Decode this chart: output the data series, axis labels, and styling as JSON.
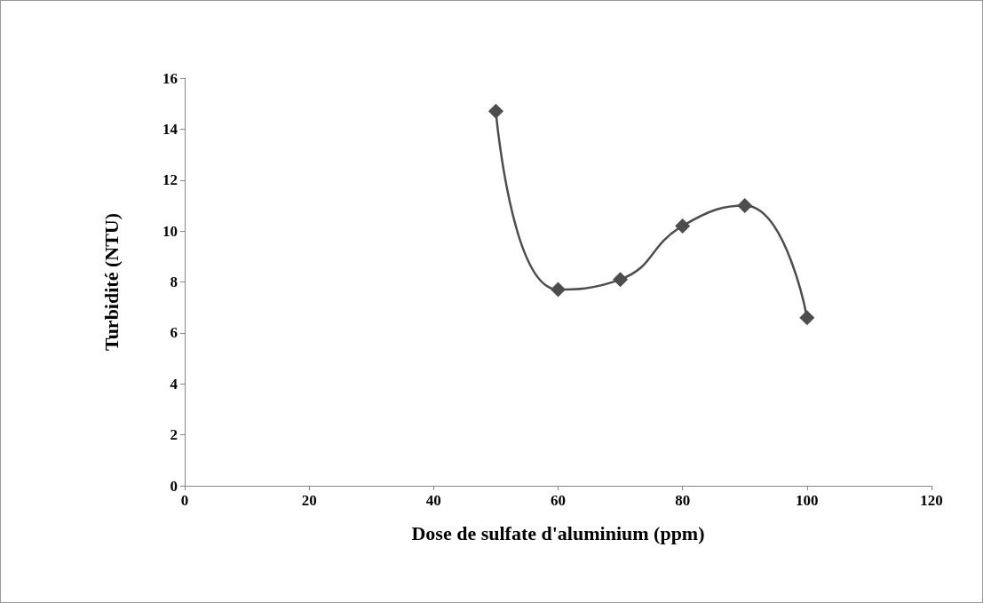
{
  "chart_data": {
    "type": "line",
    "xlabel": "Dose de sulfate d'aluminium (ppm)",
    "ylabel": "Turbidité (NTU)",
    "x": [
      50,
      60,
      70,
      80,
      90,
      100
    ],
    "series": [
      {
        "color": "#4d4d4d",
        "values": [
          14.7,
          7.7,
          8.1,
          10.2,
          11.0,
          6.6
        ]
      }
    ],
    "xlim": [
      0,
      120
    ],
    "xticks": [
      0,
      20,
      40,
      60,
      80,
      100,
      120
    ],
    "ylim": [
      0,
      16
    ],
    "yticks": [
      0,
      2,
      4,
      6,
      8,
      10,
      12,
      14,
      16
    ],
    "grid": false,
    "marker": "diamond",
    "line_style": "solid"
  }
}
